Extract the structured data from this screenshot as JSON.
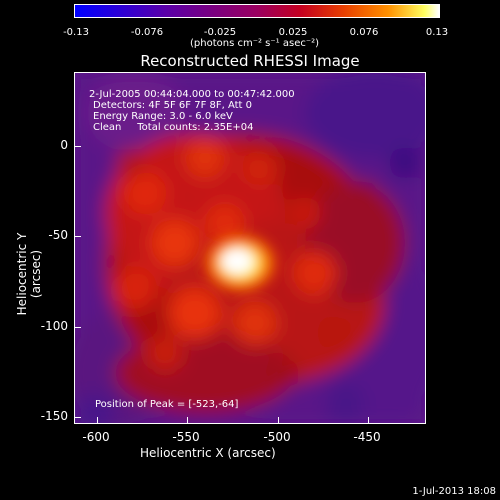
{
  "colorbar": {
    "ticks": [
      "-0.13",
      "-0.076",
      "-0.025",
      "0.025",
      "0.076",
      "0.13"
    ],
    "unit": "(photons cm⁻² s⁻¹ asec⁻²)"
  },
  "title": "Reconstructed RHESSI Image",
  "annotation": {
    "line1": "2-Jul-2005 00:44:04.000 to 00:47:42.000",
    "line2": "Detectors: 4F 5F 6F 7F 8F, Att 0",
    "line3": "Energy Range: 3.0 - 6.0 keV",
    "line4": "Clean     Total counts: 2.35E+04",
    "peak": "Position of Peak = [-523,-64]"
  },
  "axes": {
    "ylabel": "Heliocentric Y (arcsec)",
    "xlabel": "Heliocentric X (arcsec)",
    "yticks": [
      "0",
      "-50",
      "-100",
      "-150"
    ],
    "xticks": [
      "-600",
      "-550",
      "-500",
      "-450"
    ]
  },
  "footer": {
    "date": "1-Jul-2013 18:08"
  }
}
